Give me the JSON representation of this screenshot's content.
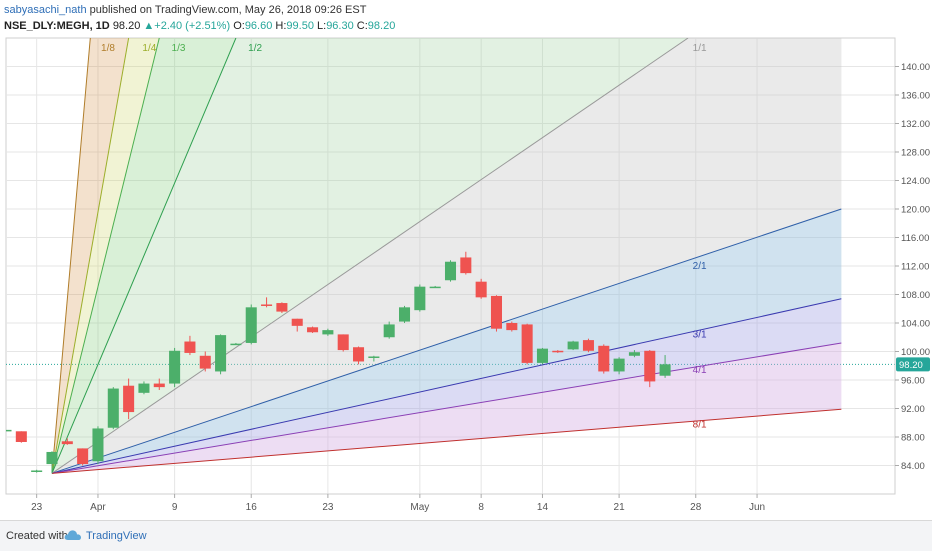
{
  "header": {
    "author": "sabyasachi_nath",
    "published_text": "published on TradingView.com, May 26, 2018 09:26 EST",
    "symbol": "NSE_DLY:MEGH, 1D",
    "last": "98.20",
    "change": "▲+2.40 (+2.51%)",
    "o_label": "O:",
    "o_value": "96.60",
    "h_label": "H:",
    "h_value": "99.50",
    "l_label": "L:",
    "l_value": "96.30",
    "c_label": "C:",
    "c_value": "98.20"
  },
  "footer": {
    "created_with": "Created with",
    "brand": "TradingView",
    "cloud_icon": "tradingview-cloud-icon"
  },
  "colors": {
    "up": "#26a69a",
    "up_fill": "#4caf6a",
    "down": "#ef5350",
    "grid": "#e6e6e6",
    "axis_text": "#555555",
    "price_tag": "#26a69a"
  },
  "chart_data": {
    "type": "candlestick",
    "y_axis": {
      "ticks": [
        84,
        88,
        92,
        96,
        100,
        104,
        108,
        112,
        116,
        120,
        124,
        128,
        132,
        136,
        140
      ],
      "tick_labels": [
        "84.00",
        "88.00",
        "92.00",
        "96.00",
        "100.00",
        "104.00",
        "108.00",
        "112.00",
        "116.00",
        "120.00",
        "124.00",
        "128.00",
        "132.00",
        "136.00",
        "140.00"
      ],
      "range": [
        80,
        144
      ],
      "last_price_label": "98.20"
    },
    "x_axis": {
      "range": [
        -2,
        56
      ],
      "ticks": [
        {
          "x": 0,
          "label": "23"
        },
        {
          "x": 4,
          "label": "Apr"
        },
        {
          "x": 9,
          "label": "9"
        },
        {
          "x": 14,
          "label": "16"
        },
        {
          "x": 19,
          "label": "23"
        },
        {
          "x": 25,
          "label": "May"
        },
        {
          "x": 29,
          "label": "8"
        },
        {
          "x": 33,
          "label": "14"
        },
        {
          "x": 38,
          "label": "21"
        },
        {
          "x": 43,
          "label": "28"
        },
        {
          "x": 47,
          "label": "Jun"
        }
      ]
    },
    "candles": [
      {
        "x": -2,
        "o": 89.0,
        "h": 89.0,
        "l": 89.0,
        "c": 89.0
      },
      {
        "x": -1,
        "o": 88.8,
        "h": 88.8,
        "l": 87.2,
        "c": 87.3
      },
      {
        "x": 0,
        "o": 83.2,
        "h": 83.4,
        "l": 83.0,
        "c": 83.3
      },
      {
        "x": 1,
        "o": 84.2,
        "h": 86.0,
        "l": 82.9,
        "c": 85.9
      },
      {
        "x": 2,
        "o": 87.4,
        "h": 87.8,
        "l": 86.9,
        "c": 87.0
      },
      {
        "x": 3,
        "o": 86.4,
        "h": 86.4,
        "l": 84.0,
        "c": 84.2
      },
      {
        "x": 4,
        "o": 84.6,
        "h": 89.5,
        "l": 84.2,
        "c": 89.2
      },
      {
        "x": 5,
        "o": 89.3,
        "h": 95.0,
        "l": 89.1,
        "c": 94.8
      },
      {
        "x": 6,
        "o": 95.2,
        "h": 96.2,
        "l": 90.5,
        "c": 91.5
      },
      {
        "x": 7,
        "o": 94.2,
        "h": 95.8,
        "l": 94.0,
        "c": 95.5
      },
      {
        "x": 8,
        "o": 95.5,
        "h": 96.2,
        "l": 94.6,
        "c": 95.0
      },
      {
        "x": 9,
        "o": 95.5,
        "h": 100.5,
        "l": 95.0,
        "c": 100.1
      },
      {
        "x": 10,
        "o": 101.4,
        "h": 102.2,
        "l": 99.5,
        "c": 99.8
      },
      {
        "x": 11,
        "o": 99.4,
        "h": 100.0,
        "l": 97.2,
        "c": 97.6
      },
      {
        "x": 12,
        "o": 97.2,
        "h": 102.4,
        "l": 96.8,
        "c": 102.3
      },
      {
        "x": 13,
        "o": 101.1,
        "h": 101.2,
        "l": 101.0,
        "c": 101.1
      },
      {
        "x": 14,
        "o": 101.2,
        "h": 106.6,
        "l": 101.0,
        "c": 106.2
      },
      {
        "x": 15,
        "o": 106.6,
        "h": 107.6,
        "l": 106.2,
        "c": 106.4
      },
      {
        "x": 16,
        "o": 106.8,
        "h": 106.9,
        "l": 105.4,
        "c": 105.6
      },
      {
        "x": 17,
        "o": 104.6,
        "h": 104.6,
        "l": 102.8,
        "c": 103.6
      },
      {
        "x": 18,
        "o": 103.4,
        "h": 103.5,
        "l": 102.6,
        "c": 102.7
      },
      {
        "x": 19,
        "o": 102.4,
        "h": 103.2,
        "l": 102.2,
        "c": 103.0
      },
      {
        "x": 20,
        "o": 102.4,
        "h": 102.4,
        "l": 100.0,
        "c": 100.2
      },
      {
        "x": 21,
        "o": 100.6,
        "h": 100.7,
        "l": 98.2,
        "c": 98.6
      },
      {
        "x": 22,
        "o": 99.1,
        "h": 99.4,
        "l": 98.6,
        "c": 99.3
      },
      {
        "x": 23,
        "o": 102.0,
        "h": 104.2,
        "l": 101.8,
        "c": 103.8
      },
      {
        "x": 24,
        "o": 104.2,
        "h": 106.4,
        "l": 104.0,
        "c": 106.2
      },
      {
        "x": 25,
        "o": 105.8,
        "h": 109.4,
        "l": 105.6,
        "c": 109.1
      },
      {
        "x": 26,
        "o": 109.1,
        "h": 109.2,
        "l": 109.0,
        "c": 109.1
      },
      {
        "x": 27,
        "o": 110.0,
        "h": 112.8,
        "l": 109.8,
        "c": 112.6
      },
      {
        "x": 28,
        "o": 113.2,
        "h": 114.0,
        "l": 110.8,
        "c": 111.0
      },
      {
        "x": 29,
        "o": 109.8,
        "h": 110.2,
        "l": 107.4,
        "c": 107.6
      },
      {
        "x": 30,
        "o": 107.8,
        "h": 107.9,
        "l": 102.8,
        "c": 103.2
      },
      {
        "x": 31,
        "o": 104.0,
        "h": 104.2,
        "l": 102.8,
        "c": 103.0
      },
      {
        "x": 32,
        "o": 103.8,
        "h": 103.9,
        "l": 98.2,
        "c": 98.4
      },
      {
        "x": 33,
        "o": 98.4,
        "h": 100.5,
        "l": 98.2,
        "c": 100.4
      },
      {
        "x": 34,
        "o": 100.1,
        "h": 100.2,
        "l": 99.8,
        "c": 100.0
      },
      {
        "x": 35,
        "o": 100.3,
        "h": 101.5,
        "l": 100.2,
        "c": 101.4
      },
      {
        "x": 36,
        "o": 101.6,
        "h": 101.8,
        "l": 99.9,
        "c": 100.1
      },
      {
        "x": 37,
        "o": 100.8,
        "h": 101.0,
        "l": 96.9,
        "c": 97.2
      },
      {
        "x": 38,
        "o": 97.2,
        "h": 99.2,
        "l": 96.8,
        "c": 99.0
      },
      {
        "x": 39,
        "o": 99.4,
        "h": 100.2,
        "l": 99.2,
        "c": 99.9
      },
      {
        "x": 40,
        "o": 100.1,
        "h": 100.2,
        "l": 95.0,
        "c": 95.8
      },
      {
        "x": 41,
        "o": 96.6,
        "h": 99.5,
        "l": 96.3,
        "c": 98.2
      }
    ],
    "gann_fan": {
      "origin": {
        "x": 1,
        "y": 82.9
      },
      "lines": [
        {
          "label": "1/8",
          "end": {
            "x": 3.5,
            "y": 144
          },
          "color": "#b07d2a",
          "fill": "rgba(208,140,60,0.26)"
        },
        {
          "label": "1/4",
          "end": {
            "x": 6,
            "y": 144
          },
          "color": "#9cae2a",
          "fill": "rgba(200,210,90,0.26)"
        },
        {
          "label": "1/3",
          "end": {
            "x": 8,
            "y": 144
          },
          "color": "#4caf50",
          "fill": "rgba(120,200,110,0.28)"
        },
        {
          "label": "1/2",
          "end": {
            "x": 13,
            "y": 144
          },
          "color": "#2e9f4f",
          "fill": "rgba(160,210,160,0.30)"
        },
        {
          "label": "1/1",
          "end": {
            "x": 42.5,
            "y": 144
          },
          "color": "#999999",
          "fill": "rgba(200,200,200,0.38)"
        },
        {
          "label": "2/1",
          "end": {
            "x": 52.5,
            "y": 120
          },
          "color": "#2f5fa8",
          "fill": "rgba(150,190,220,0.45)"
        },
        {
          "label": "3/1",
          "end": {
            "x": 52.5,
            "y": 107.4
          },
          "color": "#3a3ab0",
          "fill": "rgba(160,160,225,0.38)"
        },
        {
          "label": "4/1",
          "end": {
            "x": 52.5,
            "y": 101.2
          },
          "color": "#8a3fb5",
          "fill": "rgba(210,170,225,0.40)"
        },
        {
          "label": "8/1",
          "end": {
            "x": 52.5,
            "y": 91.9
          },
          "color": "#c0302e",
          "fill": "rgba(235,160,160,0.45)"
        }
      ],
      "labels": [
        {
          "text": "1/8",
          "x": 4.2,
          "y": 142.2
        },
        {
          "text": "1/4",
          "x": 6.9,
          "y": 142.2
        },
        {
          "text": "1/3",
          "x": 8.8,
          "y": 142.2
        },
        {
          "text": "1/2",
          "x": 13.8,
          "y": 142.2
        },
        {
          "text": "1/1",
          "x": 42.8,
          "y": 142.2
        },
        {
          "text": "2/1",
          "x": 42.8,
          "y": 111.6
        },
        {
          "text": "3/1",
          "x": 42.8,
          "y": 102.0
        },
        {
          "text": "4/1",
          "x": 42.8,
          "y": 97.0
        },
        {
          "text": "8/1",
          "x": 42.8,
          "y": 89.3
        }
      ]
    }
  }
}
